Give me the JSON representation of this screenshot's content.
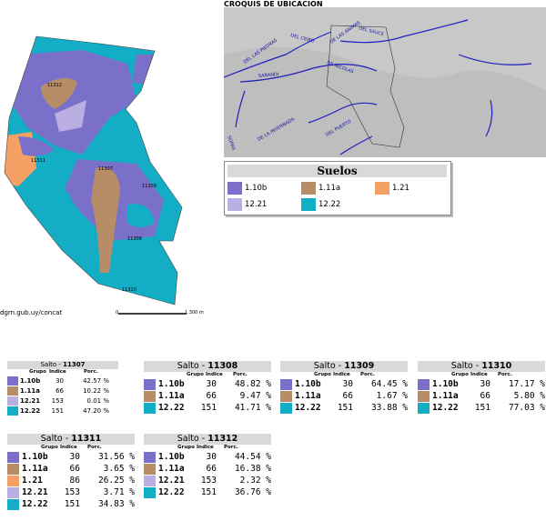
{
  "inset_title": "CROQUIS DE UBICACION",
  "legend": {
    "title": "Suelos",
    "items": [
      {
        "label": "1.10b",
        "color": "#7a6fc9"
      },
      {
        "label": "1.11a",
        "color": "#b78d68"
      },
      {
        "label": "1.21",
        "color": "#f5a064"
      },
      {
        "label": "12.21",
        "color": "#baaee3"
      },
      {
        "label": "12.22",
        "color": "#13aec6"
      }
    ]
  },
  "map": {
    "source_url": "dgrn.gub.uy/concat",
    "scale_start": "0",
    "scale_end": "1.300 m",
    "parcel_labels": [
      "11312",
      "11311",
      "11307",
      "11309",
      "11308",
      "11310"
    ],
    "river_labels": [
      "DEL LAS PIEDRAS",
      "DEL CEIBO",
      "DEL SAUCE",
      "SARANDI",
      "DE LAS ANIMAS",
      "DE NICOLAS",
      "DE LA INVERNADA",
      "DEL PUERTO",
      "SOPAS"
    ]
  },
  "column_headers": {
    "grupo": "Grupo",
    "indice": "Indice",
    "porc": "Porc."
  },
  "tables": [
    {
      "prefix": "Salto - ",
      "padron": "11307",
      "rows": [
        {
          "grupo": "1.10b",
          "indice": "30",
          "porc": "42.57 %",
          "color": "#7a6fc9"
        },
        {
          "grupo": "1.11a",
          "indice": "66",
          "porc": "10.22 %",
          "color": "#b78d68"
        },
        {
          "grupo": "12.21",
          "indice": "153",
          "porc": "0.01 %",
          "color": "#baaee3"
        },
        {
          "grupo": "12.22",
          "indice": "151",
          "porc": "47.20 %",
          "color": "#13aec6"
        }
      ]
    },
    {
      "prefix": "Salto - ",
      "padron": "11308",
      "rows": [
        {
          "grupo": "1.10b",
          "indice": "30",
          "porc": "48.82 %",
          "color": "#7a6fc9"
        },
        {
          "grupo": "1.11a",
          "indice": "66",
          "porc": "9.47 %",
          "color": "#b78d68"
        },
        {
          "grupo": "12.22",
          "indice": "151",
          "porc": "41.71 %",
          "color": "#13aec6"
        }
      ]
    },
    {
      "prefix": "Salto - ",
      "padron": "11309",
      "rows": [
        {
          "grupo": "1.10b",
          "indice": "30",
          "porc": "64.45 %",
          "color": "#7a6fc9"
        },
        {
          "grupo": "1.11a",
          "indice": "66",
          "porc": "1.67 %",
          "color": "#b78d68"
        },
        {
          "grupo": "12.22",
          "indice": "151",
          "porc": "33.88 %",
          "color": "#13aec6"
        }
      ]
    },
    {
      "prefix": "Salto - ",
      "padron": "11310",
      "rows": [
        {
          "grupo": "1.10b",
          "indice": "30",
          "porc": "17.17 %",
          "color": "#7a6fc9"
        },
        {
          "grupo": "1.11a",
          "indice": "66",
          "porc": "5.80 %",
          "color": "#b78d68"
        },
        {
          "grupo": "12.22",
          "indice": "151",
          "porc": "77.03 %",
          "color": "#13aec6"
        }
      ]
    },
    {
      "prefix": "Salto - ",
      "padron": "11311",
      "rows": [
        {
          "grupo": "1.10b",
          "indice": "30",
          "porc": "31.56 %",
          "color": "#7a6fc9"
        },
        {
          "grupo": "1.11a",
          "indice": "66",
          "porc": "3.65 %",
          "color": "#b78d68"
        },
        {
          "grupo": "1.21",
          "indice": "86",
          "porc": "26.25 %",
          "color": "#f5a064"
        },
        {
          "grupo": "12.21",
          "indice": "153",
          "porc": "3.71 %",
          "color": "#baaee3"
        },
        {
          "grupo": "12.22",
          "indice": "151",
          "porc": "34.83 %",
          "color": "#13aec6"
        }
      ]
    },
    {
      "prefix": "Salto - ",
      "padron": "11312",
      "rows": [
        {
          "grupo": "1.10b",
          "indice": "30",
          "porc": "44.54 %",
          "color": "#7a6fc9"
        },
        {
          "grupo": "1.11a",
          "indice": "66",
          "porc": "16.38 %",
          "color": "#b78d68"
        },
        {
          "grupo": "12.21",
          "indice": "153",
          "porc": "2.32 %",
          "color": "#baaee3"
        },
        {
          "grupo": "12.22",
          "indice": "151",
          "porc": "36.76 %",
          "color": "#13aec6"
        }
      ]
    }
  ]
}
